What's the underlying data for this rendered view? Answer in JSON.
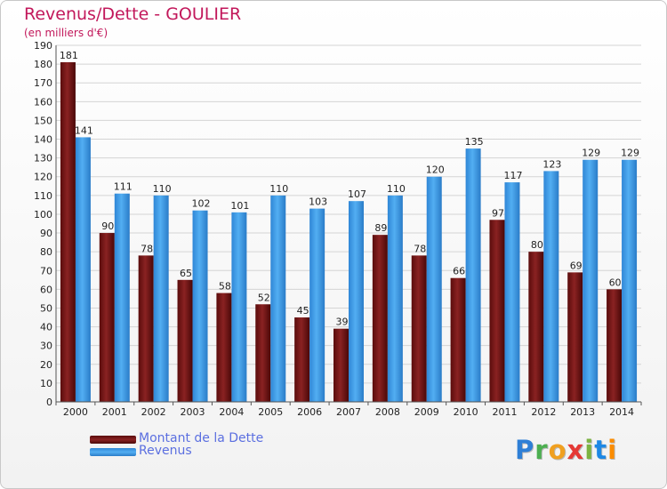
{
  "header": {
    "title": "Revenus/Dette - GOULIER",
    "subtitle": "(en milliers d'€)"
  },
  "legend": {
    "items": [
      {
        "label": "Montant de la Dette",
        "color": "#7a1515"
      },
      {
        "label": "Revenus",
        "color": "#3d9be8"
      }
    ]
  },
  "logo": {
    "text": "Proxiti",
    "letters": [
      "P",
      "r",
      "o",
      "x",
      "i",
      "t",
      "i"
    ],
    "colors": [
      "#2e7fd6",
      "#4caf50",
      "#f0a020",
      "#e53935",
      "#7cb342",
      "#1e88e5",
      "#fb8c00"
    ]
  },
  "chart_data": {
    "type": "bar",
    "categories": [
      "2000",
      "2001",
      "2002",
      "2003",
      "2004",
      "2005",
      "2006",
      "2007",
      "2008",
      "2009",
      "2010",
      "2011",
      "2012",
      "2013",
      "2014"
    ],
    "series": [
      {
        "name": "Montant de la Dette",
        "color": "#7a1515",
        "values": [
          181,
          90,
          78,
          65,
          58,
          52,
          45,
          39,
          89,
          78,
          66,
          97,
          80,
          69,
          60
        ]
      },
      {
        "name": "Revenus",
        "color": "#3d9be8",
        "values": [
          141,
          111,
          110,
          102,
          101,
          110,
          103,
          107,
          110,
          120,
          135,
          117,
          123,
          129,
          129
        ]
      }
    ],
    "title": "Revenus/Dette - GOULIER",
    "ylabel": "(en milliers d'€)",
    "ylim": [
      0,
      190
    ],
    "ytick_step": 10,
    "grid": true,
    "legend": "bottom-left"
  }
}
